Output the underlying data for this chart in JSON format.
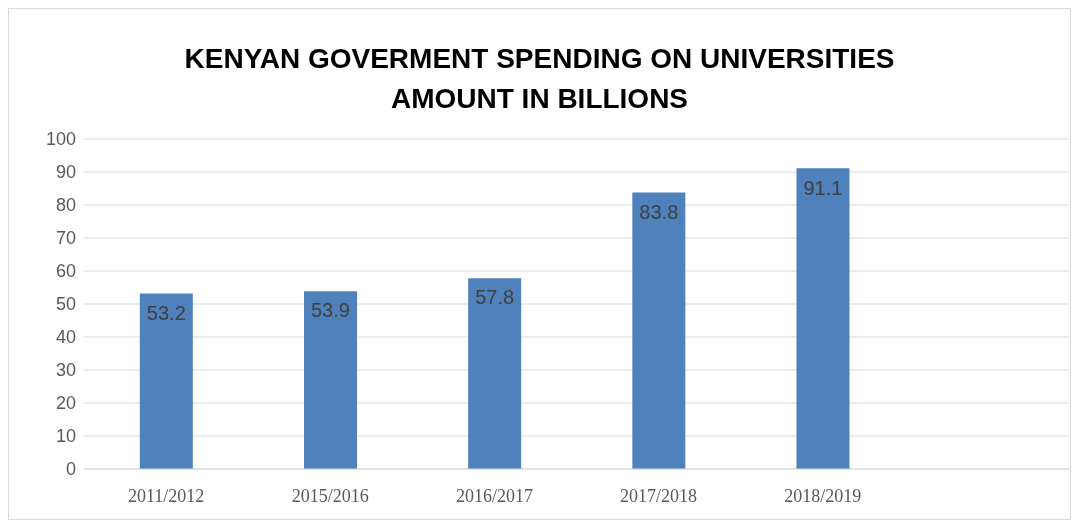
{
  "chart_data": {
    "type": "bar",
    "title": "KENYAN GOVERMENT SPENDING ON UNIVERSITIES\nAMOUNT IN BILLIONS",
    "categories": [
      "2011/2012",
      "2015/2016",
      "2016/2017",
      "2017/2018",
      "2018/2019",
      null
    ],
    "values": [
      53.2,
      53.9,
      57.8,
      83.8,
      91.1,
      null
    ],
    "color": "#4f81bd",
    "ylim": [
      0,
      100
    ],
    "yticks": [
      0,
      10,
      20,
      30,
      40,
      50,
      60,
      70,
      80,
      90,
      100
    ],
    "grid": "y",
    "data_labels": true
  }
}
